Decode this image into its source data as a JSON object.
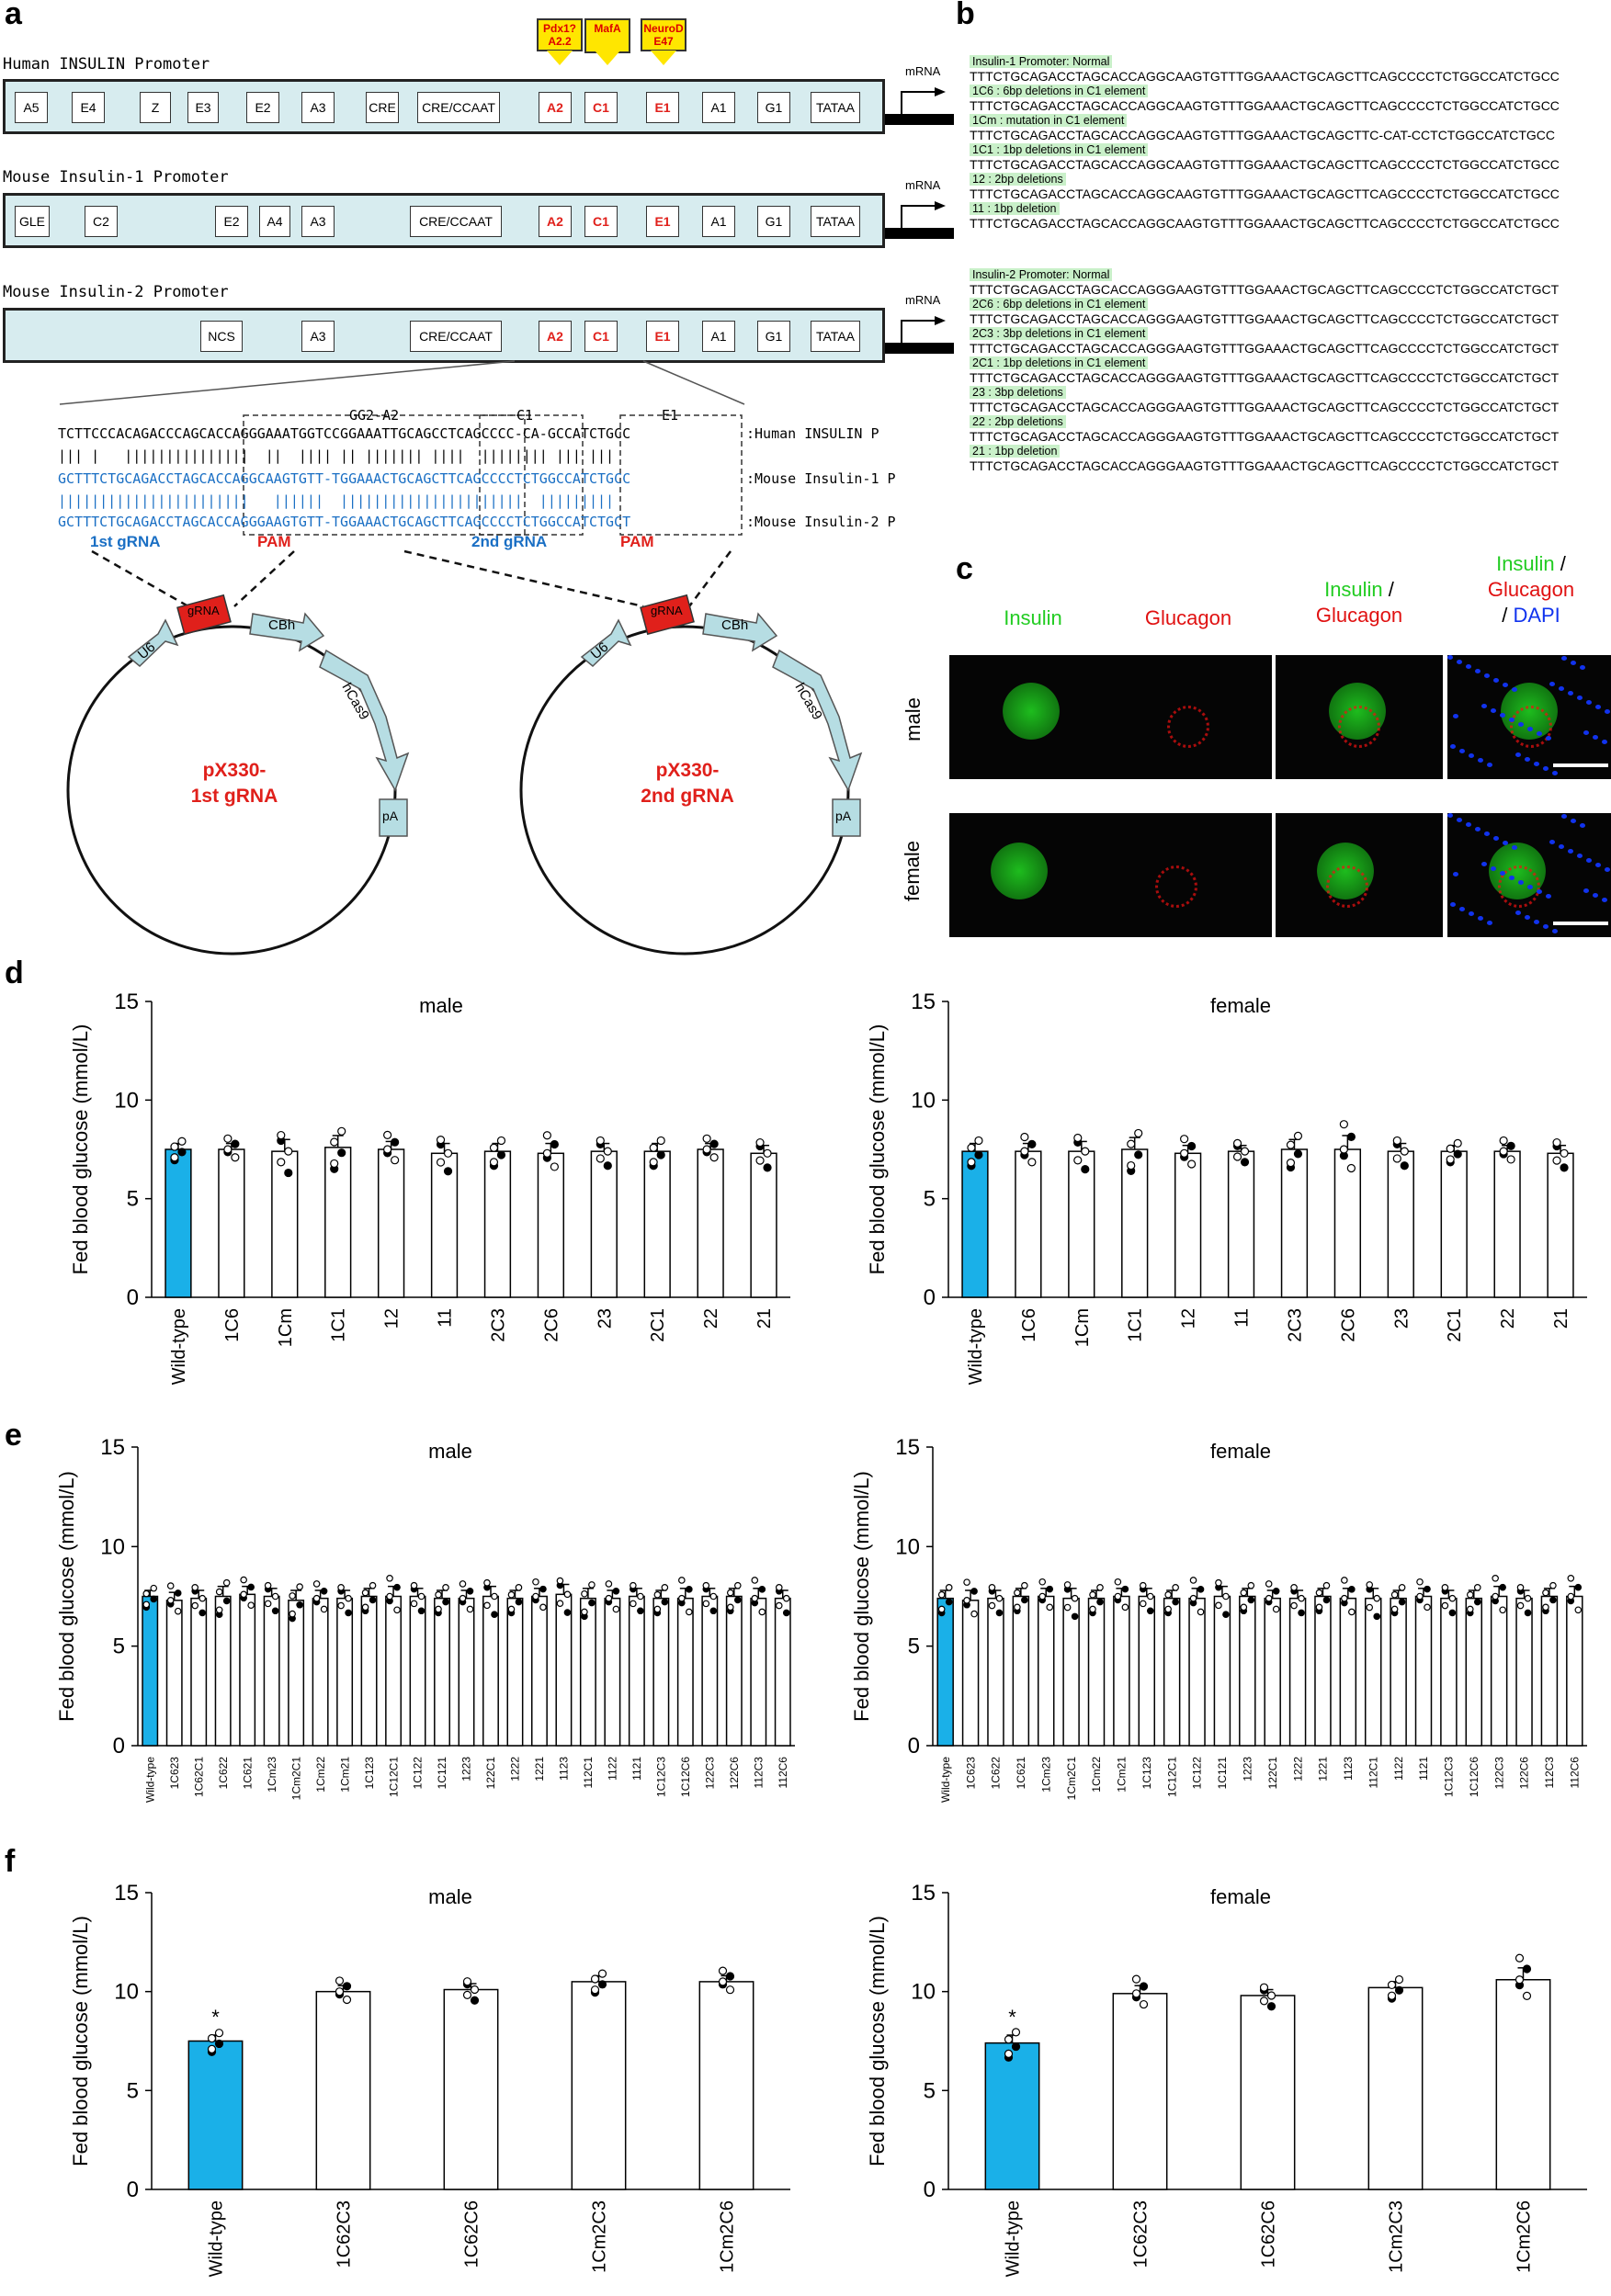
{
  "panels": {
    "a": "a",
    "b": "b",
    "c": "c",
    "d": "d",
    "e": "e",
    "f": "f"
  },
  "panel_a": {
    "promoters": [
      {
        "title": "Human INSULIN Promoter",
        "elements": [
          "A5",
          "E4",
          "Z",
          "E3",
          "E2",
          "A3",
          "CRE",
          "CRE/CCAAT",
          "A2",
          "C1",
          "E1",
          "A1",
          "G1",
          "TATAA"
        ],
        "red": [
          "A2",
          "C1",
          "E1"
        ]
      },
      {
        "title": "Mouse Insulin-1 Promoter",
        "elements": [
          "GLE",
          "C2",
          "E2",
          "A4",
          "A3",
          "CRE/CCAAT",
          "A2",
          "C1",
          "E1",
          "A1",
          "G1",
          "TATAA"
        ],
        "red": [
          "A2",
          "C1",
          "E1"
        ]
      },
      {
        "title": "Mouse Insulin-2 Promoter",
        "elements": [
          "NCS",
          "A3",
          "CRE/CCAAT",
          "A2",
          "C1",
          "E1",
          "A1",
          "G1",
          "TATAA"
        ],
        "red": [
          "A2",
          "C1",
          "E1"
        ]
      }
    ],
    "mrna": "mRNA",
    "tfs": [
      {
        "l1": "Pdx1?",
        "l2": "A2.2"
      },
      {
        "l1": "MafA",
        "l2": ""
      },
      {
        "l1": "NeuroD",
        "l2": "E47"
      }
    ],
    "alignment": {
      "box_labels": [
        "GG2-A2",
        "C1",
        "E1"
      ],
      "rows": [
        {
          "seq": "TCTTCCCACAGACCCAGCACCAGGGAAATGGTCCGGAAATTGCAGCCTCAGCCCC-CA-GCCATCTGCC",
          "label": ":Human INSULIN P"
        },
        {
          "seq": "||| |   |||||||||||||||  ||  |||| || ||||||| ||||  |||||||| ||| |||",
          "label": ""
        },
        {
          "seq": "GCTTTCTGCAGACCTAGCACCAGGCAAGTGTT-TGGAAACTGCAGCTTCAGCCCCTCTGGCCATCTGCC",
          "label": ":Mouse Insulin-1 P"
        },
        {
          "seq": "|||||||||||||||||||||||   ||||||  ||||||||||||||||||||||  |||||||||",
          "label": ""
        },
        {
          "seq": "GCTTTCTGCAGACCTAGCACCAGGGAAGTGTT-TGGAAACTGCAGCTTCAGCCCCTCTGGCCATCTGCT",
          "label": ":Mouse Insulin-2 P"
        }
      ],
      "grna1": "1st gRNA",
      "grna2": "2nd gRNA",
      "pam": "PAM"
    },
    "plasmids": [
      {
        "name": "pX330-",
        "name2": "1st gRNA"
      },
      {
        "name": "pX330-",
        "name2": "2nd gRNA"
      }
    ],
    "plasmid_parts": {
      "u6": "U6",
      "grna": "gRNA",
      "cbh": "CBh",
      "cas9": "hCas9",
      "pa": "pA"
    }
  },
  "panel_b": {
    "groups": [
      {
        "heading": "Insulin-1 Promoter: Normal",
        "normal": "TTTCTGCAGACCTAGCACCAGGCAAGTGTTTGGAAACTGCAGCTTCAGCCCCTCTGGCCATCTGCC",
        "variants": [
          {
            "label": "1C6 : 6bp deletions in C1 element",
            "seq": "TTTCTGCAGACCTAGCACCAGGCAAGTGTTTGGAAACTGCAGCTTCAGCCCCTCTGGCCATCTGCC"
          },
          {
            "label": "1Cm : mutation in C1 element",
            "seq": "TTTCTGCAGACCTAGCACCAGGCAAGTGTTTGGAAACTGCAGCTTC-CAT-CCTCTGGCCATCTGCC"
          },
          {
            "label": "1C1 : 1bp deletions in C1 element",
            "seq": "TTTCTGCAGACCTAGCACCAGGCAAGTGTTTGGAAACTGCAGCTTCAGCCCCTCTGGCCATCTGCC"
          },
          {
            "label": "12 : 2bp deletions",
            "seq": "TTTCTGCAGACCTAGCACCAGGCAAGTGTTTGGAAACTGCAGCTTCAGCCCCTCTGGCCATCTGCC"
          },
          {
            "label": "11 : 1bp deletion",
            "seq": "TTTCTGCAGACCTAGCACCAGGCAAGTGTTTGGAAACTGCAGCTTCAGCCCCTCTGGCCATCTGCC"
          }
        ]
      },
      {
        "heading": "Insulin-2 Promoter: Normal",
        "normal": "TTTCTGCAGACCTAGCACCAGGGAAGTGTTTGGAAACTGCAGCTTCAGCCCCTCTGGCCATCTGCT",
        "variants": [
          {
            "label": "2C6 : 6bp deletions in C1 element",
            "seq": "TTTCTGCAGACCTAGCACCAGGGAAGTGTTTGGAAACTGCAGCTTCAGCCCCTCTGGCCATCTGCT"
          },
          {
            "label": "2C3 : 3bp deletions in C1 element",
            "seq": "TTTCTGCAGACCTAGCACCAGGGAAGTGTTTGGAAACTGCAGCTTCAGCCCCTCTGGCCATCTGCT"
          },
          {
            "label": "2C1 : 1bp deletions in C1 element",
            "seq": "TTTCTGCAGACCTAGCACCAGGGAAGTGTTTGGAAACTGCAGCTTCAGCCCCTCTGGCCATCTGCT"
          },
          {
            "label": "23 : 3bp deletions",
            "seq": "TTTCTGCAGACCTAGCACCAGGGAAGTGTTTGGAAACTGCAGCTTCAGCCCCTCTGGCCATCTGCT"
          },
          {
            "label": "22 : 2bp deletions",
            "seq": "TTTCTGCAGACCTAGCACCAGGGAAGTGTTTGGAAACTGCAGCTTCAGCCCCTCTGGCCATCTGCT"
          },
          {
            "label": "21 : 1bp deletion",
            "seq": "TTTCTGCAGACCTAGCACCAGGGAAGTGTTTGGAAACTGCAGCTTCAGCCCCTCTGGCCATCTGCT"
          }
        ]
      }
    ],
    "highlight_mut": "CAT"
  },
  "panel_c": {
    "columns": [
      "Insulin",
      "Glucagon",
      "Insulin /",
      "Glucagon",
      "Insulin /",
      "Glucagon",
      "/ DAPI"
    ],
    "col1": "Insulin",
    "col2": "Glucagon",
    "col3a": "Insulin",
    "col3b": "/",
    "col3c": "Glucagon",
    "col4a": "Insulin",
    "col4b": "/",
    "col4c": "Glucagon",
    "col4d": "/",
    "col4e": "DAPI",
    "rows": [
      "male",
      "female"
    ],
    "colors": {
      "insulin": "#22dd22",
      "glucagon": "#ee1111",
      "dapi": "#1133ee"
    }
  },
  "chart_data": [
    {
      "id": "d-male",
      "type": "bar",
      "title": "male",
      "ylabel": "Fed blood glucose (mmol/L)",
      "ylim": [
        0,
        15
      ],
      "yticks": [
        0,
        5,
        10,
        15
      ],
      "categories": [
        "Wild-type",
        "1C6",
        "1Cm",
        "1C1",
        "12",
        "11",
        "2C3",
        "2C6",
        "23",
        "2C1",
        "22",
        "21"
      ],
      "values": [
        7.5,
        7.5,
        7.4,
        7.6,
        7.5,
        7.3,
        7.4,
        7.3,
        7.4,
        7.4,
        7.5,
        7.3
      ],
      "errors": [
        0.3,
        0.3,
        0.6,
        0.6,
        0.4,
        0.5,
        0.4,
        0.5,
        0.4,
        0.4,
        0.3,
        0.4
      ]
    },
    {
      "id": "d-female",
      "type": "bar",
      "title": "female",
      "ylabel": "Fed blood glucose (mmol/L)",
      "ylim": [
        0,
        15
      ],
      "yticks": [
        0,
        5,
        10,
        15
      ],
      "categories": [
        "Wild-type",
        "1C6",
        "1Cm",
        "1C1",
        "12",
        "11",
        "2C3",
        "2C6",
        "23",
        "2C1",
        "22",
        "21"
      ],
      "values": [
        7.4,
        7.4,
        7.4,
        7.5,
        7.3,
        7.4,
        7.5,
        7.5,
        7.4,
        7.4,
        7.4,
        7.3
      ],
      "errors": [
        0.4,
        0.4,
        0.5,
        0.6,
        0.4,
        0.3,
        0.5,
        0.7,
        0.4,
        0.3,
        0.3,
        0.4
      ]
    },
    {
      "id": "e-male",
      "type": "bar",
      "title": "male",
      "ylabel": "Fed blood glucose (mmol/L)",
      "ylim": [
        0,
        15
      ],
      "yticks": [
        0,
        5,
        10,
        15
      ],
      "categories": [
        "Wild-type",
        "1C623",
        "1C62C1",
        "1C622",
        "1C621",
        "1Cm23",
        "1Cm2C1",
        "1Cm22",
        "1Cm21",
        "1C123",
        "1C12C1",
        "1C122",
        "1C121",
        "1223",
        "122C1",
        "1222",
        "1221",
        "1123",
        "112C1",
        "1122",
        "1121",
        "1C12C3",
        "1C12C6",
        "122C3",
        "122C6",
        "112C3",
        "112C6"
      ],
      "values": [
        7.5,
        7.3,
        7.4,
        7.5,
        7.6,
        7.5,
        7.3,
        7.4,
        7.4,
        7.5,
        7.5,
        7.5,
        7.4,
        7.4,
        7.5,
        7.4,
        7.5,
        7.6,
        7.4,
        7.4,
        7.5,
        7.4,
        7.4,
        7.5,
        7.5,
        7.4,
        7.4
      ],
      "errors": [
        0.3,
        0.4,
        0.4,
        0.5,
        0.4,
        0.4,
        0.5,
        0.4,
        0.4,
        0.4,
        0.5,
        0.4,
        0.4,
        0.4,
        0.5,
        0.4,
        0.4,
        0.5,
        0.5,
        0.4,
        0.4,
        0.4,
        0.5,
        0.4,
        0.4,
        0.5,
        0.4
      ]
    },
    {
      "id": "e-female",
      "type": "bar",
      "title": "female",
      "ylabel": "Fed blood glucose (mmol/L)",
      "ylim": [
        0,
        15
      ],
      "yticks": [
        0,
        5,
        10,
        15
      ],
      "categories": [
        "Wild-type",
        "1C623",
        "1C622",
        "1C621",
        "1Cm23",
        "1Cm2C1",
        "1Cm22",
        "1Cm21",
        "1C123",
        "1C12C1",
        "1C122",
        "1C121",
        "1223",
        "122C1",
        "1222",
        "1221",
        "1123",
        "112C1",
        "1122",
        "1121",
        "1C12C3",
        "1C12C6",
        "122C3",
        "122C6",
        "112C3",
        "112C6"
      ],
      "values": [
        7.4,
        7.3,
        7.4,
        7.5,
        7.5,
        7.4,
        7.4,
        7.5,
        7.5,
        7.4,
        7.4,
        7.5,
        7.5,
        7.4,
        7.4,
        7.5,
        7.4,
        7.4,
        7.4,
        7.5,
        7.4,
        7.4,
        7.5,
        7.4,
        7.5,
        7.5
      ],
      "errors": [
        0.4,
        0.5,
        0.4,
        0.4,
        0.4,
        0.5,
        0.4,
        0.4,
        0.4,
        0.4,
        0.5,
        0.5,
        0.4,
        0.4,
        0.4,
        0.4,
        0.5,
        0.5,
        0.4,
        0.4,
        0.4,
        0.4,
        0.5,
        0.4,
        0.4,
        0.5
      ]
    },
    {
      "id": "f-male",
      "type": "bar",
      "title": "male",
      "ylabel": "Fed blood glucose (mmol/L)",
      "ylim": [
        0,
        15
      ],
      "yticks": [
        0,
        5,
        10,
        15
      ],
      "categories": [
        "Wild-type",
        "1C62C3",
        "1C62C6",
        "1Cm2C3",
        "1Cm2C6"
      ],
      "values": [
        7.5,
        10.0,
        10.1,
        10.5,
        10.5
      ],
      "errors": [
        0.3,
        0.3,
        0.3,
        0.3,
        0.3
      ],
      "annotation": "*"
    },
    {
      "id": "f-female",
      "type": "bar",
      "title": "female",
      "ylabel": "Fed blood glucose (mmol/L)",
      "ylim": [
        0,
        15
      ],
      "yticks": [
        0,
        5,
        10,
        15
      ],
      "categories": [
        "Wild-type",
        "1C62C3",
        "1C62C6",
        "1Cm2C3",
        "1Cm2C6"
      ],
      "values": [
        7.4,
        9.9,
        9.8,
        10.2,
        10.6
      ],
      "errors": [
        0.4,
        0.4,
        0.3,
        0.3,
        0.6
      ],
      "annotation": "*"
    }
  ],
  "colors": {
    "wildtype": "#1ab0e8",
    "bar": "#ffffff",
    "axis": "#000000"
  }
}
